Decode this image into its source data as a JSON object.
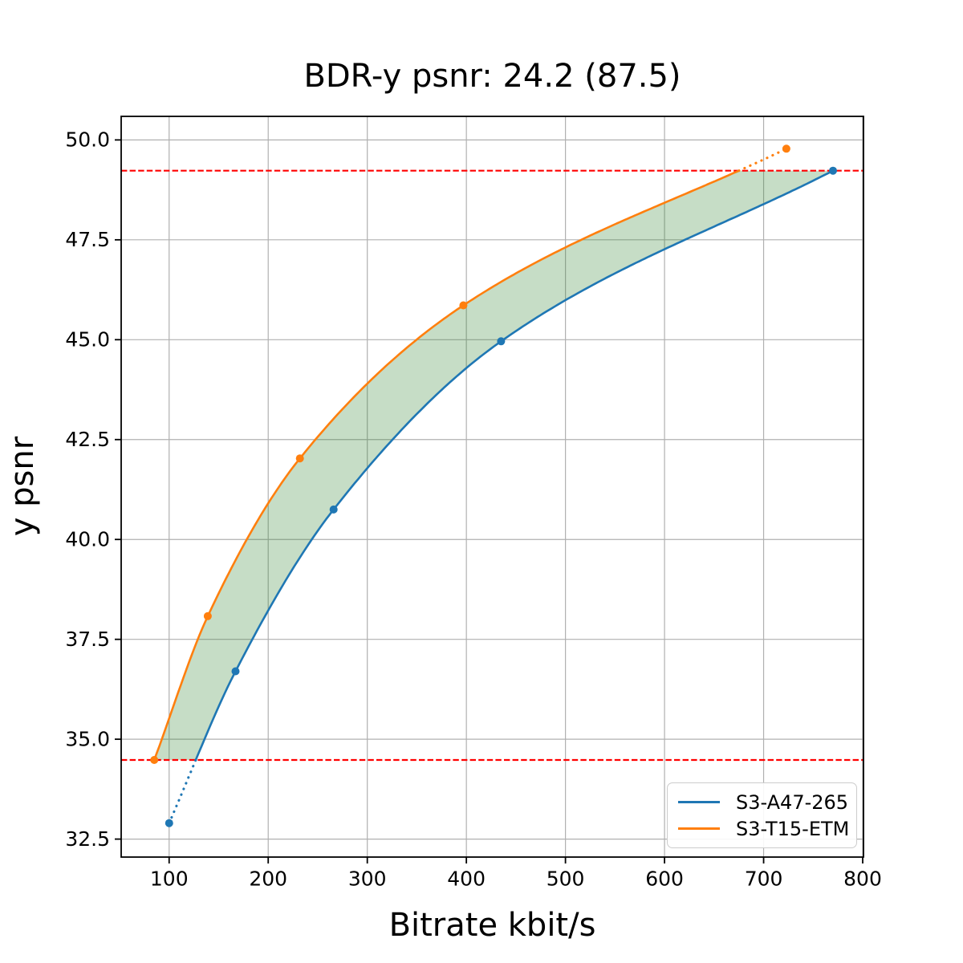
{
  "figure": {
    "background": "#ffffff"
  },
  "chart_data": {
    "type": "line",
    "title": "BDR-y psnr: 24.2 (87.5)",
    "xlabel": "Bitrate kbit/s",
    "ylabel": "y psnr",
    "xlim": [
      51.6,
      800.8
    ],
    "ylim": [
      32.05,
      50.59
    ],
    "xticks": [
      100,
      200,
      300,
      400,
      500,
      600,
      700,
      800
    ],
    "xtick_labels": [
      "100",
      "200",
      "300",
      "400",
      "500",
      "600",
      "700",
      "800"
    ],
    "yticks": [
      32.5,
      35.0,
      37.5,
      40.0,
      42.5,
      45.0,
      47.5,
      50.0
    ],
    "ytick_labels": [
      "32.5",
      "35.0",
      "37.5",
      "40.0",
      "42.5",
      "45.0",
      "47.5",
      "50.0"
    ],
    "grid": true,
    "grid_color": "#b0b0b0",
    "axis_color": "#000000",
    "series": [
      {
        "name": "S3-A47-265",
        "color": "#1f77b4",
        "marker": "circle",
        "line_style": "solid, dotted outside BD range",
        "x": [
          100,
          167,
          266,
          435,
          770
        ],
        "y": [
          32.9,
          36.7,
          40.75,
          44.96,
          49.23
        ]
      },
      {
        "name": "S3-T15-ETM",
        "color": "#ff7f0e",
        "marker": "circle",
        "line_style": "solid, dotted outside BD range",
        "x": [
          85,
          139,
          232,
          397,
          723
        ],
        "y": [
          34.48,
          38.08,
          42.03,
          45.86,
          49.78
        ]
      }
    ],
    "bd_bounds": {
      "color": "#ff0000",
      "style": "dashed",
      "values": [
        34.48,
        49.23
      ]
    },
    "fill_between": {
      "color": "#2c822c",
      "alpha": 0.27
    },
    "legend": {
      "position": "lower right",
      "entries": [
        "S3-A47-265",
        "S3-T15-ETM"
      ]
    }
  }
}
